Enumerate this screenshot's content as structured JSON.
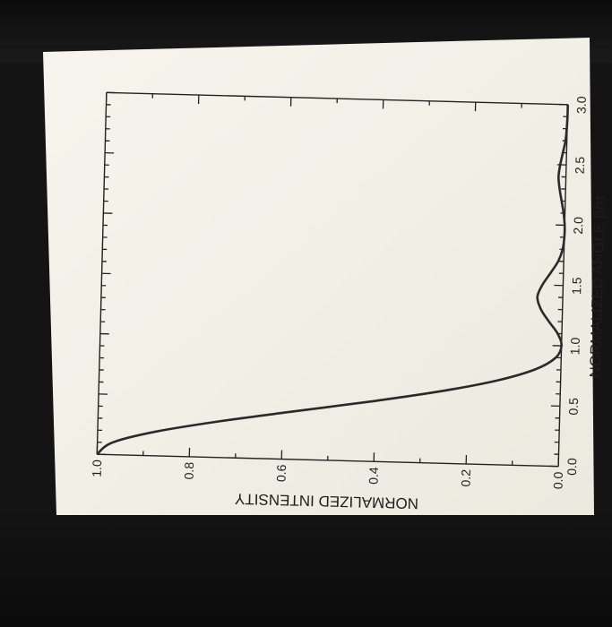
{
  "colors": {
    "paper": "#f3f1ea",
    "background": "#141414",
    "curve": "#2a2a2a"
  },
  "chart_data": {
    "type": "line",
    "title": "",
    "xlabel": "NORMALIZED ANGLE β/π",
    "ylabel": "NORMALIZED INTENSITY",
    "xlim": [
      0,
      3
    ],
    "ylim": [
      0,
      1
    ],
    "x_ticks": [
      "0.0",
      "0.5",
      "1.0",
      "1.5",
      "2.0",
      "2.5",
      "3.0"
    ],
    "y_ticks": [
      "0.0",
      "0.2",
      "0.4",
      "0.6",
      "0.8",
      "1.0"
    ],
    "grid": false,
    "orientation_note_visible": "",
    "series": [
      {
        "x": [
          0.0,
          0.1,
          0.2,
          0.3,
          0.4,
          0.5,
          0.6,
          0.7,
          0.8,
          0.9,
          1.0,
          1.1,
          1.2,
          1.3,
          1.4,
          1.5,
          1.6,
          1.7,
          1.8,
          1.9,
          2.0,
          2.1,
          2.2,
          2.3,
          2.4,
          2.5,
          2.6,
          2.7,
          2.8,
          2.9,
          3.0
        ],
        "values": [
          1.0,
          0.968,
          0.875,
          0.737,
          0.573,
          0.405,
          0.255,
          0.136,
          0.055,
          0.012,
          0.0,
          0.009,
          0.029,
          0.047,
          0.055,
          0.045,
          0.028,
          0.012,
          0.003,
          0.0,
          0.0,
          0.003,
          0.008,
          0.013,
          0.016,
          0.013,
          0.008,
          0.003,
          0.001,
          0.0,
          0.0
        ]
      }
    ]
  }
}
